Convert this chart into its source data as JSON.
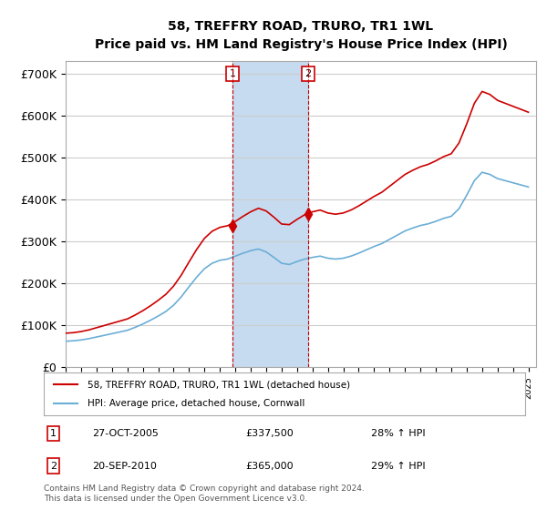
{
  "title": "58, TREFFRY ROAD, TRURO, TR1 1WL",
  "subtitle": "Price paid vs. HM Land Registry's House Price Index (HPI)",
  "ylabel_ticks": [
    "£0",
    "£100K",
    "£200K",
    "£300K",
    "£400K",
    "£500K",
    "£600K",
    "£700K"
  ],
  "ytick_vals": [
    0,
    100000,
    200000,
    300000,
    400000,
    500000,
    600000,
    700000
  ],
  "ylim": [
    0,
    730000
  ],
  "xlim_start": 1995.0,
  "xlim_end": 2025.5,
  "sale1_date": 2005.82,
  "sale1_price": 337500,
  "sale1_label": "1",
  "sale2_date": 2010.72,
  "sale2_price": 365000,
  "sale2_label": "2",
  "legend_line1": "58, TREFFRY ROAD, TRURO, TR1 1WL (detached house)",
  "legend_line2": "HPI: Average price, detached house, Cornwall",
  "table_row1": [
    "1",
    "27-OCT-2005",
    "£337,500",
    "28% ↑ HPI"
  ],
  "table_row2": [
    "2",
    "20-SEP-2010",
    "£365,000",
    "29% ↑ HPI"
  ],
  "footer": "Contains HM Land Registry data © Crown copyright and database right 2024.\nThis data is licensed under the Open Government Licence v3.0.",
  "hpi_color": "#6baed6",
  "price_color": "#cc0000",
  "vline_color": "#cc0000",
  "shade_color": "#c6dbef",
  "background_color": "#ffffff",
  "grid_color": "#cccccc"
}
